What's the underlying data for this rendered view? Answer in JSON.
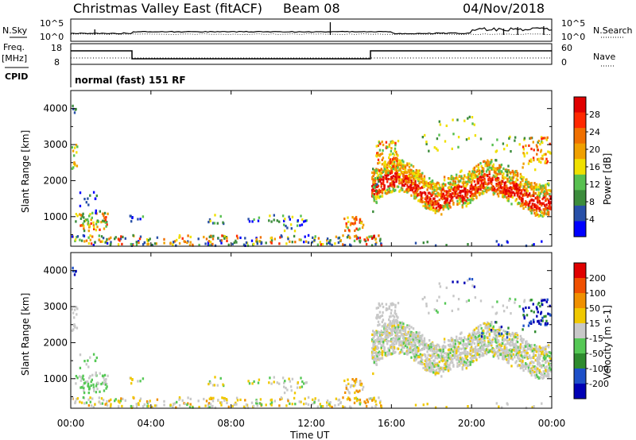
{
  "header": {
    "title": "Christmas Valley East (fitACF)",
    "beam": "Beam 08",
    "date": "04/Nov/2018"
  },
  "top_panel": {
    "nsky_label": "N.Sky",
    "nsearch_label": "N.Search",
    "log_tick_top": "10^5",
    "log_tick_bottom": "10^0",
    "freq_label_1": "Freq.",
    "freq_label_2": "[MHz]",
    "freq_ticks": [
      "18",
      "8"
    ],
    "nave_label": "Nave",
    "nave_ticks": [
      "60",
      "0"
    ],
    "cpid_label": "CPID",
    "cpid_text": "normal (fast) 151 RF"
  },
  "colors": {
    "power_scale": [
      "#0000ff",
      "#2850a8",
      "#3c8c3c",
      "#58c050",
      "#f0e000",
      "#f0a000",
      "#f07000",
      "#ff2800",
      "#e00000"
    ],
    "velocity_scale": [
      "#0000b4",
      "#1e50c8",
      "#2e8b2e",
      "#55c855",
      "#c8c8c8",
      "#f0c800",
      "#f09000",
      "#f05000",
      "#e00000"
    ]
  },
  "chart_data": [
    {
      "type": "heatmap",
      "name": "power-panel",
      "ylabel": "Slant Range [km]",
      "yticks": [
        "4000",
        "3000",
        "2000",
        "1000"
      ],
      "colorbar_label": "Power [dB]",
      "colorbar_ticks": [
        "28",
        "24",
        "20",
        "16",
        "12",
        "8",
        "4"
      ],
      "x_range_hours": [
        0,
        24
      ],
      "y_range_km": [
        180,
        4500
      ]
    },
    {
      "type": "heatmap",
      "name": "velocity-panel",
      "ylabel": "Slant Range [km]",
      "yticks": [
        "4000",
        "3000",
        "2000",
        "1000"
      ],
      "colorbar_label": "Velocity [m s-1]",
      "colorbar_ticks": [
        "200",
        "100",
        "50",
        "15",
        "-15",
        "-50",
        "-100",
        "-200"
      ],
      "x_range_hours": [
        0,
        24
      ],
      "y_range_km": [
        180,
        4500
      ]
    }
  ],
  "xaxis": {
    "ticks": [
      "00:00",
      "04:00",
      "08:00",
      "12:00",
      "16:00",
      "20:00",
      "00:00"
    ],
    "label": "Time UT"
  }
}
